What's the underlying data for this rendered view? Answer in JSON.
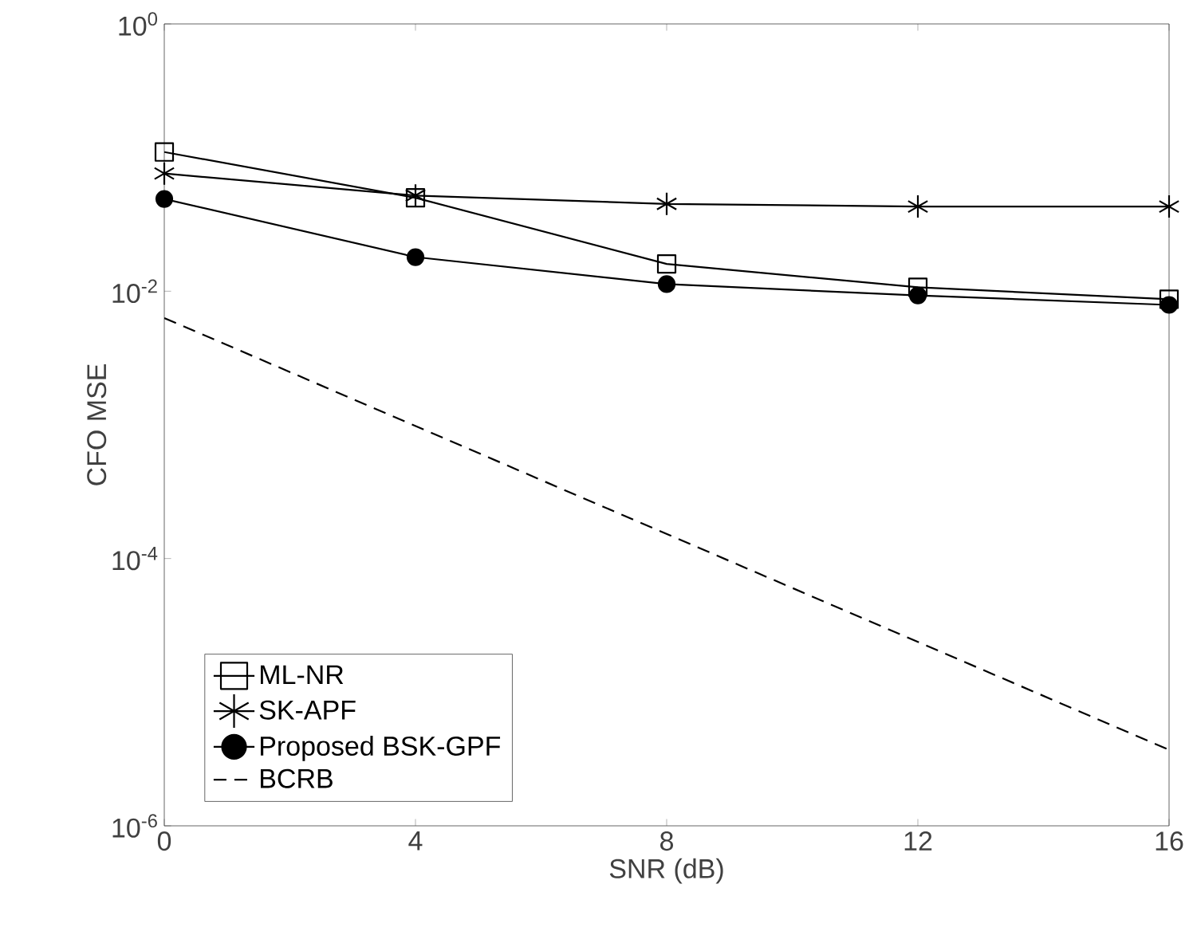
{
  "chart_data": {
    "type": "line",
    "xlabel": "SNR (dB)",
    "ylabel": "CFO MSE",
    "log": "y",
    "x": [
      0,
      4,
      8,
      12,
      16
    ],
    "xlim": [
      0,
      16
    ],
    "xticks": [
      0,
      4,
      8,
      12,
      16
    ],
    "ylim": [
      1e-06,
      1
    ],
    "yticks": [
      {
        "value": 1e-06,
        "label": "10$^{-6}$"
      },
      {
        "value": 0.0001,
        "label": "10$^{-4}$"
      },
      {
        "value": 0.01,
        "label": "10$^{-2}$"
      },
      {
        "value": 1,
        "label": "10$^{0}$"
      }
    ],
    "legend": "bottom left",
    "grid": false,
    "series": [
      {
        "name": "ML-NR",
        "color": "#000000",
        "marker": "square",
        "line_style": "solid",
        "values": [
          0.11,
          0.05,
          0.016,
          0.0107,
          0.0087
        ]
      },
      {
        "name": "SK-APF",
        "color": "#000000",
        "marker": "cross",
        "line_style": "solid",
        "values": [
          0.076,
          0.052,
          0.045,
          0.043,
          0.043
        ]
      },
      {
        "name": "Proposed BSK-GPF",
        "color": "#000000",
        "marker": "circle",
        "line_style": "solid",
        "values": [
          0.049,
          0.018,
          0.0113,
          0.0093,
          0.0079
        ]
      },
      {
        "name": "BCRB",
        "color": "#000000",
        "marker": "none",
        "line_style": "dashed",
        "x": [
          0,
          16
        ],
        "values": [
          0.0063,
          3.7e-06
        ]
      }
    ]
  }
}
